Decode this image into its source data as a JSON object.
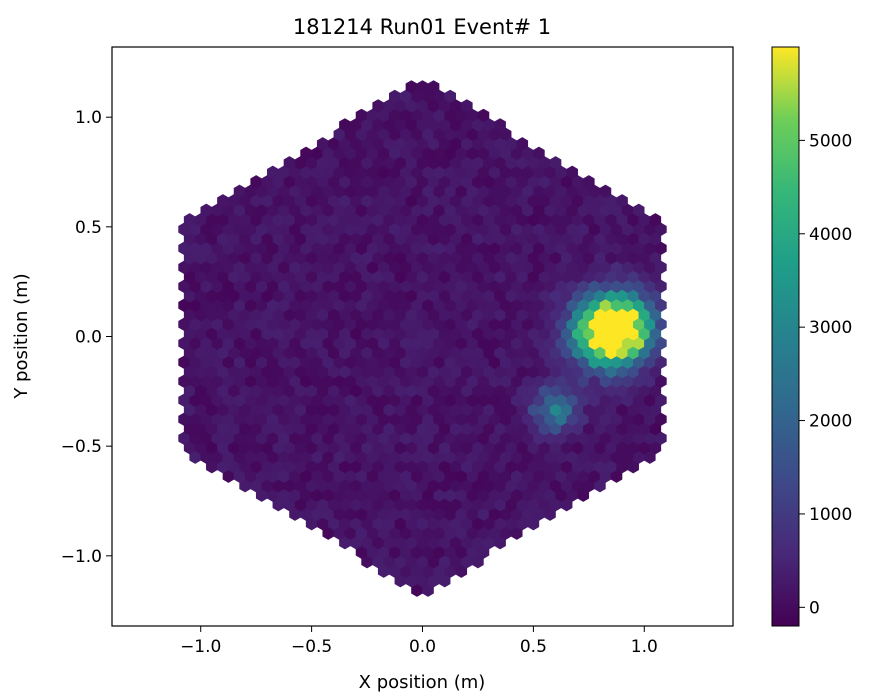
{
  "chart_data": {
    "type": "heatmap",
    "subtype": "hexagonal-camera-image",
    "title": "181214 Run01 Event# 1",
    "xlabel": "X position (m)",
    "ylabel": "Y position (m)",
    "xlim": [
      -1.4,
      1.4
    ],
    "ylim": [
      -1.32,
      1.32
    ],
    "x_ticks": [
      -1.0,
      -0.5,
      0.0,
      0.5,
      1.0
    ],
    "x_tick_labels": [
      "−1.0",
      "−0.5",
      "0.0",
      "0.5",
      "1.0"
    ],
    "y_ticks": [
      -1.0,
      -0.5,
      0.0,
      0.5,
      1.0
    ],
    "y_tick_labels": [
      "−1.0",
      "−0.5",
      "0.0",
      "0.5",
      "1.0"
    ],
    "camera_shape": "hexagon",
    "camera_vertices": [
      [
        0.0,
        1.18
      ],
      [
        1.08,
        0.52
      ],
      [
        1.08,
        -0.52
      ],
      [
        0.0,
        -1.18
      ],
      [
        -1.08,
        -0.52
      ],
      [
        -1.08,
        0.52
      ]
    ],
    "pixel_spacing_m": 0.05,
    "background_level": 150,
    "colormap": "viridis",
    "colorbar": {
      "min": -200,
      "max": 6000,
      "ticks": [
        0,
        1000,
        2000,
        3000,
        4000,
        5000
      ],
      "tick_labels": [
        "0",
        "1000",
        "2000",
        "3000",
        "4000",
        "5000"
      ]
    },
    "bright_regions": [
      {
        "x": 0.83,
        "y": 0.02,
        "peak": 5900,
        "sigma": 0.11
      },
      {
        "x": 0.9,
        "y": 0.05,
        "peak": 4200,
        "sigma": 0.1
      },
      {
        "x": 0.6,
        "y": -0.33,
        "peak": 2500,
        "sigma": 0.07
      }
    ],
    "grid": false
  }
}
